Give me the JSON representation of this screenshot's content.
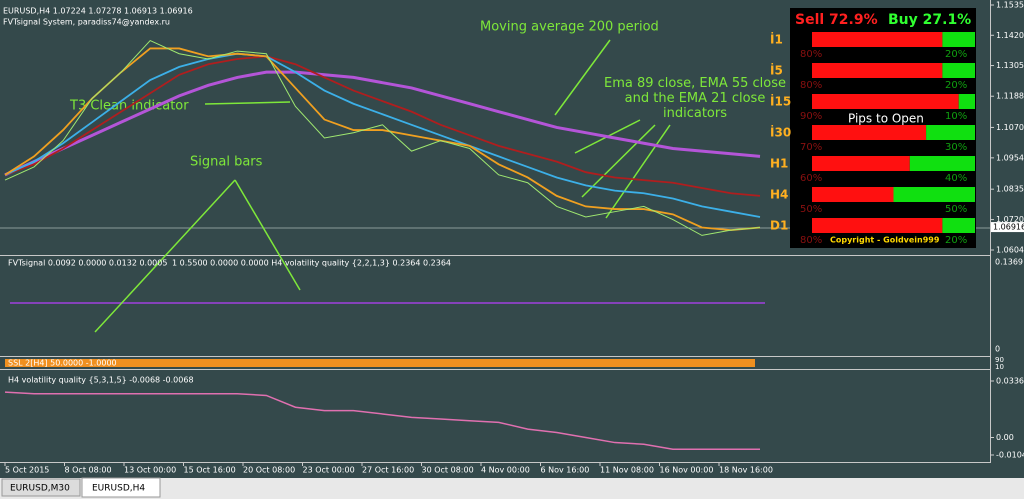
{
  "header": {
    "symbol_line": "EURUSD,H4  1.07224 1.07278 1.06913 1.06916",
    "system_line": "FVTsignal System, paradiss74@yandex.ru"
  },
  "annotations": [
    "Moving average 200 period",
    "T3 Clean indicator",
    "Ema 89 close, EMA 55 close and the EMA 21 close indicators",
    "Signal bars"
  ],
  "price_axis": {
    "ylim": [
      1.06045,
      1.1535
    ],
    "yticks": [
      1.06045,
      1.072,
      1.08355,
      1.09545,
      1.107,
      1.11885,
      1.1305,
      1.142,
      1.1535
    ],
    "tick_labels": [
      "1.06045",
      "1.07200",
      "1.08355",
      "1.09545",
      "1.10700",
      "1.11885",
      "1.13050",
      "1.14200",
      "1.15350"
    ],
    "current": {
      "value": 1.06916,
      "label": "1.06916"
    }
  },
  "series": [
    {
      "name": "Close",
      "color": "#9fe870",
      "values": [
        1.087,
        1.092,
        1.102,
        1.118,
        1.128,
        1.14,
        1.135,
        1.133,
        1.136,
        1.135,
        1.115,
        1.103,
        1.105,
        1.108,
        1.098,
        1.102,
        1.099,
        1.089,
        1.086,
        1.077,
        1.073,
        1.075,
        1.077,
        1.072,
        1.066,
        1.068,
        1.069
      ]
    },
    {
      "name": "MA 200",
      "color": "#b455d8",
      "values": [
        1.089,
        1.094,
        1.099,
        1.104,
        1.109,
        1.114,
        1.119,
        1.123,
        1.126,
        1.128,
        1.128,
        1.127,
        1.126,
        1.124,
        1.122,
        1.119,
        1.116,
        1.113,
        1.11,
        1.107,
        1.105,
        1.103,
        1.101,
        1.099,
        1.098,
        1.097,
        1.096
      ]
    },
    {
      "name": "EMA 89",
      "color": "#b01e1e",
      "values": [
        1.089,
        1.093,
        1.099,
        1.106,
        1.113,
        1.12,
        1.127,
        1.131,
        1.133,
        1.134,
        1.131,
        1.126,
        1.121,
        1.117,
        1.113,
        1.108,
        1.104,
        1.1,
        1.097,
        1.094,
        1.09,
        1.088,
        1.087,
        1.086,
        1.084,
        1.082,
        1.081
      ]
    },
    {
      "name": "EMA 55",
      "color": "#3cb0e8",
      "values": [
        1.089,
        1.094,
        1.101,
        1.109,
        1.117,
        1.125,
        1.13,
        1.133,
        1.135,
        1.134,
        1.128,
        1.121,
        1.116,
        1.112,
        1.108,
        1.104,
        1.1,
        1.096,
        1.092,
        1.088,
        1.085,
        1.083,
        1.082,
        1.08,
        1.077,
        1.075,
        1.073
      ]
    },
    {
      "name": "EMA 21",
      "color": "#f0a020",
      "values": [
        1.089,
        1.096,
        1.106,
        1.118,
        1.128,
        1.137,
        1.137,
        1.134,
        1.135,
        1.134,
        1.122,
        1.11,
        1.106,
        1.106,
        1.104,
        1.102,
        1.1,
        1.093,
        1.088,
        1.081,
        1.077,
        1.076,
        1.076,
        1.074,
        1.069,
        1.068,
        1.069
      ]
    }
  ],
  "signal_panel": {
    "legend_left": "FVTsignal 0.0092 0.0000 0.0132 0.0005",
    "legend_right": "1 0.5500 0.0000 0.0000  H4 volatility quality {2,2,1,3} 0.2364 0.2364",
    "ticks": [
      "0.1369",
      "0"
    ]
  },
  "ssl_panel": {
    "legend": "SSL 2[H4] 50.0000 -1.0000",
    "ticks": [
      "90",
      "10"
    ]
  },
  "vq_panel": {
    "legend": "H4 volatility quality {5,3,1,5} -0.0068 -0.0068",
    "ylim": [
      -0.0104,
      0.0336
    ],
    "yticks": [
      {
        "value": -0.0104,
        "label": "-0.0104"
      },
      {
        "value": 0,
        "label": "0.00"
      },
      {
        "value": 0.0336,
        "label": "0.0336"
      }
    ],
    "values": [
      0.027,
      0.026,
      0.026,
      0.026,
      0.026,
      0.026,
      0.026,
      0.026,
      0.026,
      0.025,
      0.018,
      0.016,
      0.016,
      0.014,
      0.012,
      0.011,
      0.01,
      0.009,
      0.005,
      0.003,
      0,
      -0.003,
      -0.004,
      -0.007,
      -0.007,
      -0.007,
      -0.007
    ]
  },
  "time_axis": [
    "5 Oct 2015",
    "8 Oct 08:00",
    "13 Oct 00:00",
    "15 Oct 16:00",
    "20 Oct 08:00",
    "23 Oct 00:00",
    "27 Oct 16:00",
    "30 Oct 08:00",
    "4 Nov 00:00",
    "6 Nov 16:00",
    "11 Nov 08:00",
    "16 Nov 00:00",
    "18 Nov 16:00"
  ],
  "dashboard": {
    "sell": "Sell 72.9%",
    "buy": "Buy 27.1%",
    "rows": [
      {
        "label": "İ1",
        "sell": 80,
        "buy": 20,
        "sell_label": "80%",
        "buy_label": "20%"
      },
      {
        "label": "İ5",
        "sell": 80,
        "buy": 20,
        "sell_label": "80%",
        "buy_label": "20%"
      },
      {
        "label": "İ15",
        "sell": 90,
        "buy": 10,
        "sell_label": "90%",
        "buy_label": "10%"
      },
      {
        "label": "İ30",
        "sell": 70,
        "buy": 30,
        "sell_label": "70%",
        "buy_label": "30%"
      },
      {
        "label": "H1",
        "sell": 60,
        "buy": 40,
        "sell_label": "60%",
        "buy_label": "40%"
      },
      {
        "label": "H4",
        "sell": 50,
        "buy": 50,
        "sell_label": "50%",
        "buy_label": "50%"
      },
      {
        "label": "D1",
        "sell": 80,
        "buy": 20,
        "sell_label": "80%",
        "buy_label": "20%"
      }
    ],
    "pips": "Pips to Open",
    "copyright": "Copyright - Goldvein999"
  },
  "tabs": [
    "EURUSD,M30",
    "EURUSD,H4"
  ]
}
